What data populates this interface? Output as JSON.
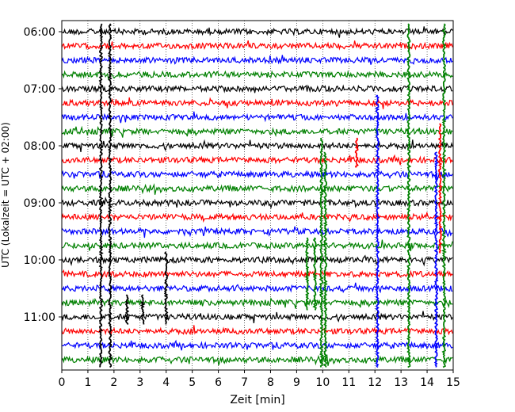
{
  "chart_data": {
    "type": "line",
    "title": "",
    "xlabel": "Zeit  [min]",
    "ylabel": "UTC (Lokalzeit = UTC + 02:00)",
    "xlim": [
      0,
      15
    ],
    "x_ticks": [
      "0",
      "1",
      "2",
      "3",
      "4",
      "5",
      "6",
      "7",
      "8",
      "9",
      "10",
      "11",
      "12",
      "13",
      "14",
      "15"
    ],
    "y_ticks": [
      "06:00",
      "07:00",
      "08:00",
      "09:00",
      "10:00",
      "11:00"
    ],
    "grid": "vertical dotted at each minute",
    "trace_colors": [
      "#000000",
      "#ff0000",
      "#0000ff",
      "#008000"
    ],
    "row_start": "06:00",
    "row_interval_min": 15,
    "row_count": 24,
    "events": [
      {
        "x": 1.5,
        "rows": [
          0,
          23
        ],
        "color": "#000000"
      },
      {
        "x": 1.85,
        "rows": [
          0,
          23
        ],
        "color": "#000000"
      },
      {
        "x": 2.5,
        "rows": [
          19,
          20
        ],
        "color": "#000000"
      },
      {
        "x": 3.1,
        "rows": [
          19,
          20
        ],
        "color": "#000000"
      },
      {
        "x": 4.0,
        "rows": [
          16,
          20
        ],
        "color": "#000000"
      },
      {
        "x": 9.4,
        "rows": [
          15,
          19
        ],
        "color": "#008000"
      },
      {
        "x": 9.7,
        "rows": [
          15,
          19
        ],
        "color": "#008000"
      },
      {
        "x": 9.95,
        "rows": [
          8,
          23
        ],
        "color": "#008000"
      },
      {
        "x": 10.1,
        "rows": [
          9,
          23
        ],
        "color": "#008000"
      },
      {
        "x": 11.3,
        "rows": [
          8,
          9
        ],
        "color": "#ff0000"
      },
      {
        "x": 12.1,
        "rows": [
          5,
          23
        ],
        "color": "#0000ff"
      },
      {
        "x": 13.3,
        "rows": [
          0,
          23
        ],
        "color": "#008000"
      },
      {
        "x": 14.35,
        "rows": [
          9,
          23
        ],
        "color": "#0000ff"
      },
      {
        "x": 14.5,
        "rows": [
          7,
          15
        ],
        "color": "#ff0000"
      },
      {
        "x": 14.65,
        "rows": [
          0,
          23
        ],
        "color": "#008000"
      }
    ]
  }
}
